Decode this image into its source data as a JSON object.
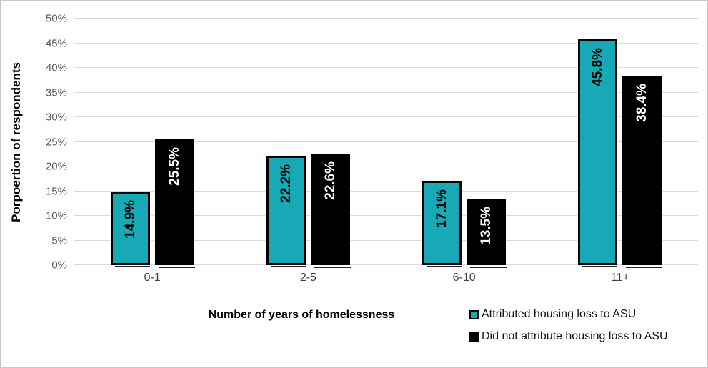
{
  "chart_data": {
    "type": "bar",
    "categories": [
      "0-1",
      "2-5",
      "6-10",
      "11+"
    ],
    "series": [
      {
        "name": "Attributed housing loss to ASU",
        "color": "#17a9b5",
        "border_color": "#000000",
        "border_width": 3,
        "label_color": "#000000",
        "values": [
          14.9,
          22.2,
          17.1,
          45.8
        ]
      },
      {
        "name": "Did not attribute housing loss to ASU",
        "color": "#000000",
        "border_color": "#000000",
        "border_width": 2,
        "label_color": "#ffffff",
        "values": [
          25.5,
          22.6,
          13.5,
          38.4
        ]
      }
    ],
    "data_label_suffix": "%",
    "title": "",
    "xlabel": "Number of years of homelessness",
    "ylabel": "Porpoertion of respondents",
    "ylim": [
      0,
      50
    ],
    "ytick_step": 5,
    "ytick_suffix": "%",
    "grid": true,
    "legend_position": "bottom-right"
  },
  "colors": {
    "grid": "#d9d9d9",
    "tick_text": "#595959",
    "frame_border": "#c8c8c8",
    "background": "#ffffff"
  }
}
